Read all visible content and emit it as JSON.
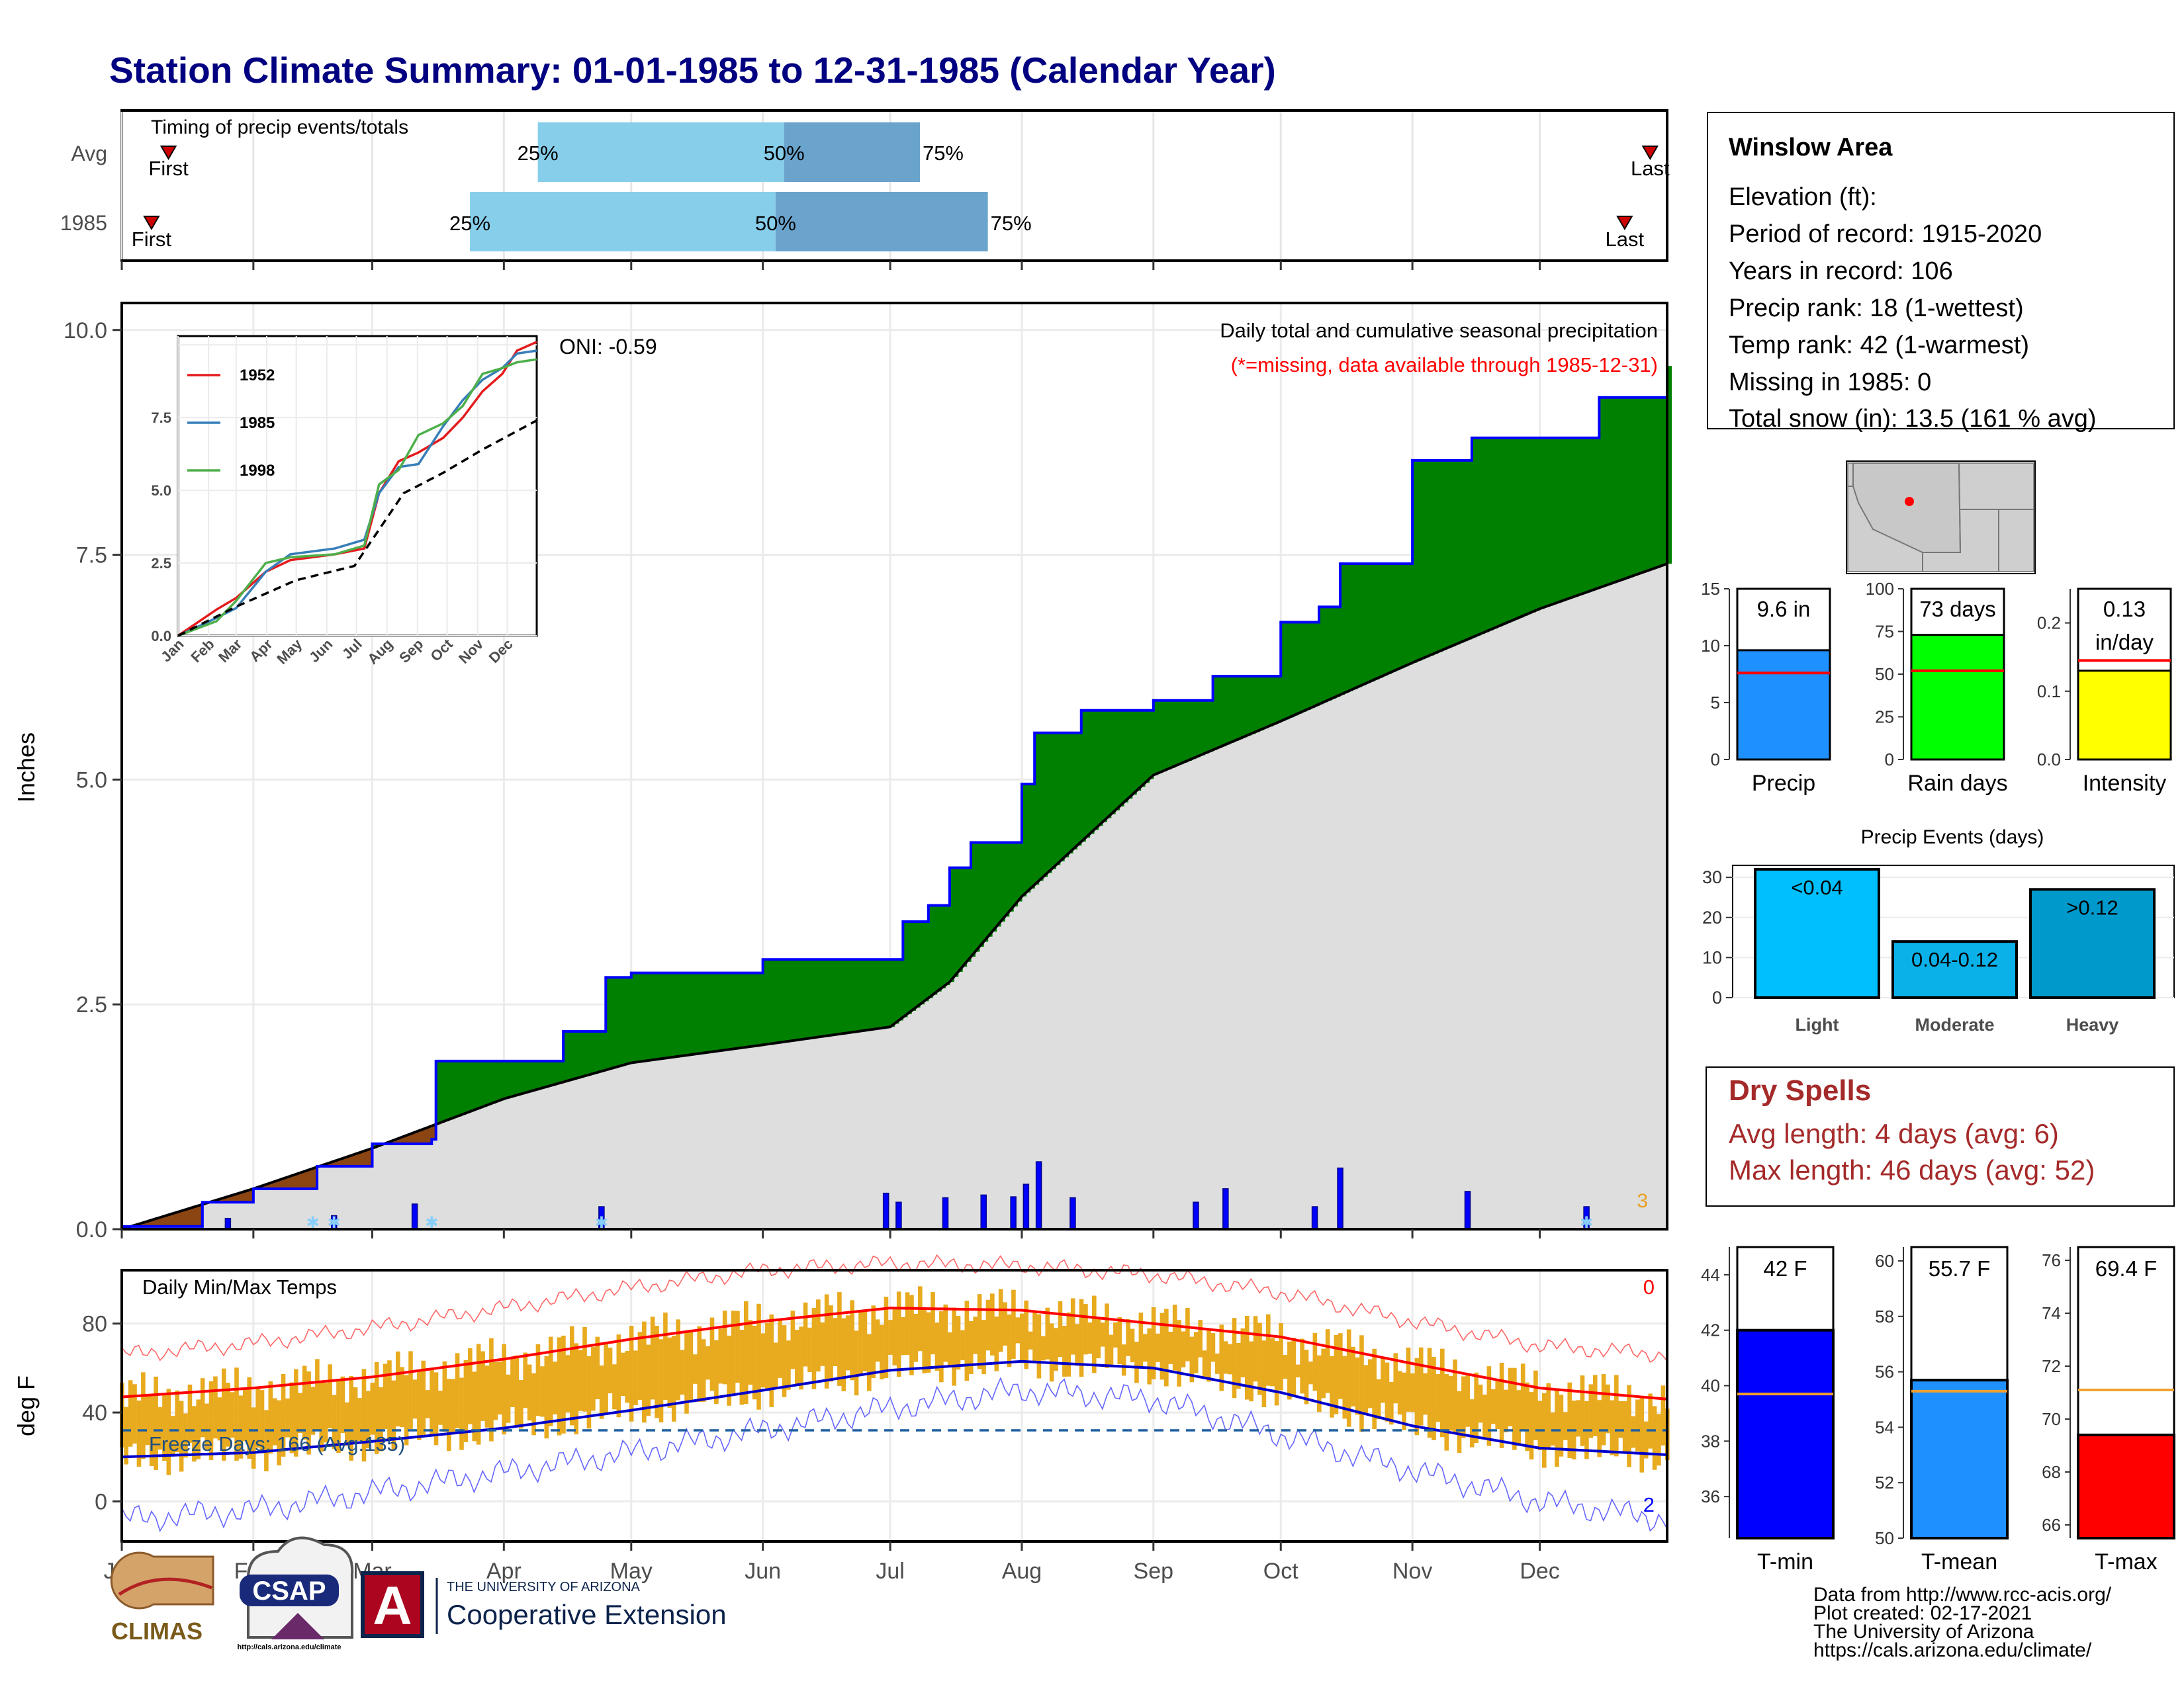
{
  "title": "Station Climate Summary: 01-01-1985 to 12-31-1985 (Calendar Year)",
  "colors": {
    "title": "#000080",
    "q1": "#87ceeb",
    "q2": "#6aa3cc",
    "green": "#008000",
    "brown": "#8b4513",
    "grey": "#dedede",
    "blue": "#0000ff",
    "red": "#ff0000",
    "gold": "#e8aa1e",
    "dry": "#a52a2a"
  },
  "timing": {
    "title": "Timing of precip events/totals",
    "rows": [
      {
        "label": "Avg",
        "first_day": 3,
        "last_day": 362,
        "p25_day": 99,
        "p50_day": 157,
        "p75_day": 189
      },
      {
        "label": "1985",
        "first_day": 1,
        "last_day": 355,
        "p25_day": 83,
        "p50_day": 155,
        "p75_day": 205
      }
    ],
    "first": "First",
    "last": "Last",
    "p25": "25%",
    "p50": "50%",
    "p75": "75%"
  },
  "months": [
    "Jan",
    "Feb",
    "Mar",
    "Apr",
    "May",
    "Jun",
    "Jul",
    "Aug",
    "Sep",
    "Oct",
    "Nov",
    "Dec"
  ],
  "precip": {
    "ylabel": "Inches",
    "ylim": [
      0,
      10.3
    ],
    "yticks": [
      "0.0",
      "2.5",
      "5.0",
      "7.5",
      "10.0"
    ],
    "title": "Daily total and cumulative seasonal precipitation",
    "subtitle": "(*=missing, data available through 1985-12-31)",
    "oni": "ONI: -0.59",
    "missing_count": "3"
  },
  "inset": {
    "yticks": [
      "0.0",
      "2.5",
      "5.0",
      "7.5"
    ],
    "months": [
      "Jan",
      "Feb",
      "Mar",
      "Apr",
      "May",
      "Jun",
      "Jul",
      "Aug",
      "Sep",
      "Oct",
      "Nov",
      "Dec"
    ],
    "legend": [
      {
        "name": "1952",
        "color": "#e41a1c"
      },
      {
        "name": "1985",
        "color": "#377eb8"
      },
      {
        "name": "1998",
        "color": "#4daf4a"
      }
    ]
  },
  "temps": {
    "ylabel": "deg F",
    "title": "Daily Min/Max Temps",
    "yticks": [
      "0",
      "40",
      "80"
    ],
    "freeze": "Freeze Days: 166 (Avg:135)",
    "max_missing": "0",
    "min_missing": "2"
  },
  "info": {
    "station": "Winslow Area",
    "lines": [
      "Elevation (ft):",
      "Period of record: 1915-2020",
      "Years in record: 106",
      "Precip rank: 18 (1-wettest)",
      "Temp rank: 42 (1-warmest)",
      "Missing in 1985: 0",
      "Total snow (in): 13.5 (161 % avg)"
    ]
  },
  "summary_bars": [
    {
      "label": "Precip",
      "value_text": "9.6 in",
      "value": 9.6,
      "avg": 7.6,
      "ymax": 15,
      "ticks": [
        "0",
        "5",
        "10",
        "15"
      ],
      "tickvals": [
        0,
        5,
        10,
        15
      ],
      "color": "#1e90ff"
    },
    {
      "label": "Rain days",
      "value_text": "73 days",
      "value": 73,
      "avg": 52,
      "ymax": 100,
      "ticks": [
        "0",
        "25",
        "50",
        "75",
        "100"
      ],
      "tickvals": [
        0,
        25,
        50,
        75,
        100
      ],
      "color": "#00ff00"
    },
    {
      "label": "Intensity",
      "value_text": "0.13",
      "value_text2": "in/day",
      "value": 0.13,
      "avg": 0.145,
      "ymax": 0.25,
      "ticks": [
        "0.0",
        "0.1",
        "0.2"
      ],
      "tickvals": [
        0,
        0.1,
        0.2
      ],
      "color": "#ffff00"
    }
  ],
  "events": {
    "title": "Precip Events (days)",
    "yticks": [
      "0",
      "10",
      "20",
      "30"
    ],
    "categories": [
      "Light",
      "Moderate",
      "Heavy"
    ],
    "labels": [
      "<0.04",
      "0.04-0.12",
      ">0.12"
    ],
    "values": [
      32,
      14,
      27
    ],
    "colors": [
      "#00bfff",
      "#0ab0e8",
      "#0099cc"
    ]
  },
  "dry": {
    "title": "Dry Spells",
    "avg_line": "Avg length: 4 days (avg: 6)",
    "max_line": "Max length: 46 days (avg: 52)"
  },
  "temp_bars": [
    {
      "label": "T-min",
      "value_text": "42 F",
      "value": 42,
      "avg": 39.7,
      "ymin": 34.5,
      "ymax": 45,
      "ticks": [
        "36",
        "38",
        "40",
        "42",
        "44"
      ],
      "tickvals": [
        36,
        38,
        40,
        42,
        44
      ],
      "color": "#0000ff"
    },
    {
      "label": "T-mean",
      "value_text": "55.7 F",
      "value": 55.7,
      "avg": 55.3,
      "ymin": 50,
      "ymax": 60.5,
      "ticks": [
        "50",
        "52",
        "54",
        "56",
        "58",
        "60"
      ],
      "tickvals": [
        50,
        52,
        54,
        56,
        58,
        60
      ],
      "color": "#1e90ff"
    },
    {
      "label": "T-max",
      "value_text": "69.4 F",
      "value": 69.4,
      "avg": 71.1,
      "ymin": 65.5,
      "ymax": 76.5,
      "ticks": [
        "66",
        "68",
        "70",
        "72",
        "74",
        "76"
      ],
      "tickvals": [
        66,
        68,
        70,
        72,
        74,
        76
      ],
      "color": "#ff0000"
    }
  ],
  "logos": {
    "climas": "CLIMAS",
    "csap": "CSAP",
    "csap_url": "http://cals.arizona.edu/climate",
    "ua_small": "THE UNIVERSITY OF ARIZONA",
    "ua_big": "Cooperative Extension",
    "ua_letter": "A"
  },
  "credits": [
    "Data from http://www.rcc-acis.org/",
    "Plot created: 02-17-2021",
    "The University of Arizona",
    "https://cals.arizona.edu/climate/"
  ],
  "chart_data": [
    {
      "type": "line",
      "title": "Daily total and cumulative seasonal precipitation",
      "ylabel": "Inches",
      "ylim": [
        0,
        10.3
      ],
      "series": [
        {
          "name": "1985",
          "x": [
            "Jan 1",
            "Jan 20",
            "Feb 1",
            "Feb 16",
            "Mar 1",
            "Mar 15",
            "Mar 16",
            "Apr 15",
            "Apr 25",
            "May 1",
            "Jun 1",
            "Jul 1",
            "Jul 4",
            "Jul 10",
            "Jul 15",
            "Jul 20",
            "Aug 1",
            "Aug 4",
            "Aug 15",
            "Sep 1",
            "Sep 15",
            "Oct 1",
            "Oct 10",
            "Oct 15",
            "Nov 1",
            "Nov 15",
            "Dec 15",
            "Dec 31"
          ],
          "values": [
            0.03,
            0.3,
            0.45,
            0.7,
            0.95,
            1.0,
            1.87,
            2.2,
            2.8,
            2.85,
            3.0,
            3.0,
            3.42,
            3.6,
            4.02,
            4.3,
            4.95,
            5.52,
            5.77,
            5.88,
            6.15,
            6.75,
            6.92,
            7.4,
            8.55,
            8.8,
            9.25,
            9.6
          ]
        },
        {
          "name": "Average",
          "x": [
            "Jan 1",
            "Feb 1",
            "Mar 1",
            "Apr 1",
            "May 1",
            "Jun 1",
            "Jul 1",
            "Jul 15",
            "Aug 1",
            "Sep 1",
            "Oct 1",
            "Nov 1",
            "Dec 1",
            "Dec 31"
          ],
          "values": [
            0,
            0.45,
            0.9,
            1.45,
            1.85,
            2.05,
            2.25,
            2.75,
            3.7,
            5.05,
            5.65,
            6.3,
            6.9,
            7.4
          ]
        }
      ],
      "daily_bars": {
        "x": [
          "Jan 26",
          "Feb 20",
          "Mar 11",
          "Apr 24",
          "Jun 30",
          "Jul 3",
          "Jul 14",
          "Jul 23",
          "Jul 30",
          "Aug 2",
          "Aug 5",
          "Aug 13",
          "Sep 11",
          "Sep 18",
          "Oct 9",
          "Oct 15",
          "Nov 14",
          "Dec 12"
        ],
        "values": [
          0.12,
          0.15,
          0.28,
          0.25,
          0.4,
          0.3,
          0.35,
          0.38,
          0.36,
          0.5,
          0.75,
          0.35,
          0.3,
          0.45,
          0.25,
          0.68,
          0.42,
          0.25
        ]
      },
      "annotations": [
        "ONI: -0.59",
        "(*=missing, data available through 1985-12-31)",
        "3"
      ]
    },
    {
      "type": "line",
      "title": "",
      "xlabel": "",
      "yticks": [
        "0.0",
        "2.5",
        "5.0",
        "7.5"
      ],
      "series": [
        {
          "name": "1952",
          "x": [
            1,
            40,
            60,
            90,
            115,
            160,
            190,
            205,
            225,
            245,
            270,
            290,
            310,
            330,
            345,
            365
          ],
          "values": [
            0,
            0.9,
            1.3,
            2.2,
            2.6,
            2.8,
            3.0,
            4.9,
            6.0,
            6.3,
            6.8,
            7.5,
            8.4,
            9.0,
            9.8,
            10.1
          ]
        },
        {
          "name": "1985",
          "x": [
            1,
            30,
            60,
            90,
            115,
            160,
            190,
            205,
            225,
            245,
            270,
            290,
            310,
            330,
            345,
            365
          ],
          "values": [
            0,
            0.45,
            0.95,
            2.2,
            2.8,
            3.0,
            3.3,
            4.9,
            5.8,
            5.9,
            7.2,
            8.1,
            8.8,
            9.2,
            9.7,
            9.8
          ]
        },
        {
          "name": "1998",
          "x": [
            1,
            40,
            60,
            90,
            115,
            160,
            190,
            205,
            225,
            245,
            270,
            290,
            310,
            330,
            345,
            365
          ],
          "values": [
            0,
            0.5,
            1.2,
            2.5,
            2.7,
            2.8,
            3.1,
            5.2,
            5.7,
            6.9,
            7.3,
            7.9,
            9.0,
            9.2,
            9.4,
            9.5
          ]
        },
        {
          "name": "",
          "x": [
            1,
            60,
            120,
            180,
            200,
            230,
            270,
            310,
            365
          ],
          "values": [
            0,
            1.0,
            1.9,
            2.4,
            3.4,
            4.9,
            5.6,
            6.4,
            7.4
          ]
        }
      ]
    },
    {
      "type": "line",
      "title": "Daily Min/Max Temps",
      "ylabel": "deg F",
      "ylim": [
        -18,
        104
      ],
      "series": [
        {
          "name": "",
          "x": [
            1,
            32,
            60,
            91,
            121,
            152,
            182,
            213,
            244,
            274,
            305,
            335,
            365
          ],
          "values": [
            47,
            51,
            56,
            64,
            73,
            81,
            87,
            86,
            80,
            74,
            62,
            51,
            46
          ]
        },
        {
          "name": "",
          "x": [
            1,
            32,
            60,
            91,
            121,
            152,
            182,
            213,
            244,
            274,
            305,
            335,
            365
          ],
          "values": [
            20,
            22,
            27,
            33,
            41,
            50,
            59,
            63,
            60,
            49,
            34,
            24,
            21
          ]
        },
        {
          "name": "",
          "x": [
            1,
            32,
            60,
            91,
            121,
            152,
            182,
            213,
            244,
            274,
            305,
            335,
            365
          ],
          "values": [
            66,
            71,
            78,
            87,
            96,
            104,
            107,
            106,
            102,
            94,
            81,
            70,
            66
          ]
        },
        {
          "name": "",
          "x": [
            1,
            32,
            60,
            91,
            121,
            152,
            182,
            213,
            244,
            274,
            305,
            335,
            365
          ],
          "values": [
            -8,
            -4,
            4,
            13,
            22,
            32,
            42,
            50,
            46,
            30,
            14,
            0,
            -8
          ]
        }
      ],
      "reference_line": 32,
      "annotations": [
        "Freeze Days: 166 (Avg:135)",
        "0",
        "2"
      ]
    },
    {
      "type": "bar",
      "title": "Precip Events (days)",
      "categories": [
        "Light",
        "Moderate",
        "Heavy"
      ],
      "values": [
        32,
        14,
        27
      ],
      "data_labels": [
        "<0.04",
        "0.04-0.12",
        ">0.12"
      ]
    },
    {
      "type": "bar",
      "categories": [
        "Precip",
        "Rain days",
        "Intensity"
      ],
      "values": [
        9.6,
        73,
        0.13
      ],
      "data_labels": [
        "9.6 in",
        "73 days",
        "0.13 in/day"
      ]
    },
    {
      "type": "bar",
      "categories": [
        "T-min",
        "T-mean",
        "T-max"
      ],
      "values": [
        42,
        55.7,
        69.4
      ],
      "data_labels": [
        "42 F",
        "55.7 F",
        "69.4 F"
      ]
    }
  ]
}
